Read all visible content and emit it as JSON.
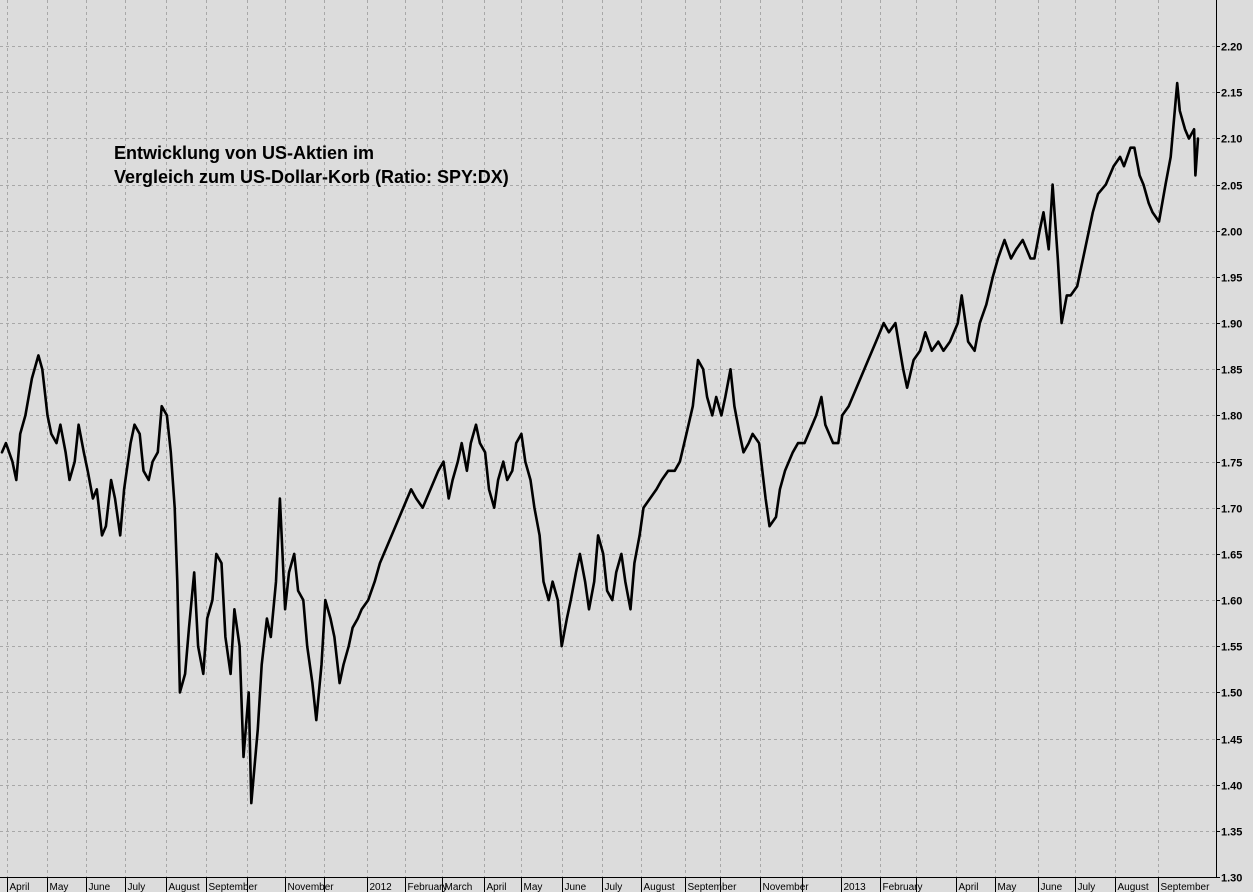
{
  "chart_data": {
    "type": "line",
    "title_lines": [
      "Entwicklung von US-Aktien im",
      "Vergleich zum US-Dollar-Korb (Ratio: SPY:DX)"
    ],
    "xlabel": "",
    "ylabel": "",
    "ylim": [
      1.3,
      2.25
    ],
    "y_ticks": [
      1.3,
      1.35,
      1.4,
      1.45,
      1.5,
      1.55,
      1.6,
      1.65,
      1.7,
      1.75,
      1.8,
      1.85,
      1.9,
      1.95,
      2.0,
      2.05,
      2.1,
      2.15,
      2.2
    ],
    "y_tick_labels": [
      "1.30",
      "1.35",
      "1.40",
      "1.45",
      "1.50",
      "1.55",
      "1.60",
      "1.65",
      "1.70",
      "1.75",
      "1.80",
      "1.85",
      "1.90",
      "1.95",
      "2.00",
      "2.05",
      "2.10",
      "2.15",
      "2.20"
    ],
    "y_axis_side": "right",
    "x_range": [
      "2011-03-28",
      "2013-10-04"
    ],
    "x_ticks": [
      {
        "date": "2011-04-01",
        "label": "April"
      },
      {
        "date": "2011-05-02",
        "label": "May"
      },
      {
        "date": "2011-06-01",
        "label": "June"
      },
      {
        "date": "2011-07-01",
        "label": "July"
      },
      {
        "date": "2011-08-01",
        "label": "August"
      },
      {
        "date": "2011-09-01",
        "label": "September"
      },
      {
        "date": "2011-10-03",
        "label": ""
      },
      {
        "date": "2011-11-01",
        "label": "November"
      },
      {
        "date": "2011-12-01",
        "label": ""
      },
      {
        "date": "2012-01-03",
        "label": "2012"
      },
      {
        "date": "2012-02-01",
        "label": "February"
      },
      {
        "date": "2012-03-01",
        "label": "March"
      },
      {
        "date": "2012-04-02",
        "label": "April"
      },
      {
        "date": "2012-05-01",
        "label": "May"
      },
      {
        "date": "2012-06-01",
        "label": "June"
      },
      {
        "date": "2012-07-02",
        "label": "July"
      },
      {
        "date": "2012-08-01",
        "label": "August"
      },
      {
        "date": "2012-09-04",
        "label": "September"
      },
      {
        "date": "2012-10-01",
        "label": ""
      },
      {
        "date": "2012-11-01",
        "label": "November"
      },
      {
        "date": "2012-12-03",
        "label": ""
      },
      {
        "date": "2013-01-02",
        "label": "2013"
      },
      {
        "date": "2013-02-01",
        "label": "February"
      },
      {
        "date": "2013-03-01",
        "label": ""
      },
      {
        "date": "2013-04-01",
        "label": "April"
      },
      {
        "date": "2013-05-01",
        "label": "May"
      },
      {
        "date": "2013-06-03",
        "label": "June"
      },
      {
        "date": "2013-07-01",
        "label": "July"
      },
      {
        "date": "2013-08-01",
        "label": "August"
      },
      {
        "date": "2013-09-03",
        "label": "September"
      }
    ],
    "grid": true,
    "colors": {
      "background": "#dcdcdc",
      "line": "#000000",
      "grid": "#a8a8a8"
    },
    "series": [
      {
        "values": [
          [
            "2011-03-28",
            1.76
          ],
          [
            "2011-03-31",
            1.77
          ],
          [
            "2011-04-05",
            1.75
          ],
          [
            "2011-04-08",
            1.73
          ],
          [
            "2011-04-11",
            1.78
          ],
          [
            "2011-04-15",
            1.8
          ],
          [
            "2011-04-20",
            1.84
          ],
          [
            "2011-04-25",
            1.865
          ],
          [
            "2011-04-28",
            1.85
          ],
          [
            "2011-05-02",
            1.8
          ],
          [
            "2011-05-05",
            1.78
          ],
          [
            "2011-05-09",
            1.77
          ],
          [
            "2011-05-12",
            1.79
          ],
          [
            "2011-05-16",
            1.76
          ],
          [
            "2011-05-19",
            1.73
          ],
          [
            "2011-05-23",
            1.75
          ],
          [
            "2011-05-26",
            1.79
          ],
          [
            "2011-05-30",
            1.76
          ],
          [
            "2011-06-02",
            1.74
          ],
          [
            "2011-06-06",
            1.71
          ],
          [
            "2011-06-09",
            1.72
          ],
          [
            "2011-06-13",
            1.67
          ],
          [
            "2011-06-16",
            1.68
          ],
          [
            "2011-06-20",
            1.73
          ],
          [
            "2011-06-23",
            1.71
          ],
          [
            "2011-06-27",
            1.67
          ],
          [
            "2011-06-30",
            1.72
          ],
          [
            "2011-07-05",
            1.77
          ],
          [
            "2011-07-08",
            1.79
          ],
          [
            "2011-07-12",
            1.78
          ],
          [
            "2011-07-15",
            1.74
          ],
          [
            "2011-07-19",
            1.73
          ],
          [
            "2011-07-22",
            1.75
          ],
          [
            "2011-07-26",
            1.76
          ],
          [
            "2011-07-29",
            1.81
          ],
          [
            "2011-08-02",
            1.8
          ],
          [
            "2011-08-05",
            1.76
          ],
          [
            "2011-08-08",
            1.7
          ],
          [
            "2011-08-10",
            1.62
          ],
          [
            "2011-08-12",
            1.5
          ],
          [
            "2011-08-16",
            1.52
          ],
          [
            "2011-08-19",
            1.57
          ],
          [
            "2011-08-23",
            1.63
          ],
          [
            "2011-08-26",
            1.55
          ],
          [
            "2011-08-30",
            1.52
          ],
          [
            "2011-09-02",
            1.58
          ],
          [
            "2011-09-06",
            1.6
          ],
          [
            "2011-09-09",
            1.65
          ],
          [
            "2011-09-13",
            1.64
          ],
          [
            "2011-09-16",
            1.56
          ],
          [
            "2011-09-20",
            1.52
          ],
          [
            "2011-09-23",
            1.59
          ],
          [
            "2011-09-27",
            1.55
          ],
          [
            "2011-09-30",
            1.43
          ],
          [
            "2011-10-04",
            1.5
          ],
          [
            "2011-10-06",
            1.38
          ],
          [
            "2011-10-11",
            1.46
          ],
          [
            "2011-10-14",
            1.53
          ],
          [
            "2011-10-18",
            1.58
          ],
          [
            "2011-10-21",
            1.56
          ],
          [
            "2011-10-25",
            1.62
          ],
          [
            "2011-10-28",
            1.71
          ],
          [
            "2011-11-01",
            1.59
          ],
          [
            "2011-11-04",
            1.63
          ],
          [
            "2011-11-08",
            1.65
          ],
          [
            "2011-11-11",
            1.61
          ],
          [
            "2011-11-15",
            1.6
          ],
          [
            "2011-11-18",
            1.55
          ],
          [
            "2011-11-22",
            1.51
          ],
          [
            "2011-11-25",
            1.47
          ],
          [
            "2011-11-29",
            1.53
          ],
          [
            "2011-12-02",
            1.6
          ],
          [
            "2011-12-06",
            1.58
          ],
          [
            "2011-12-09",
            1.56
          ],
          [
            "2011-12-13",
            1.51
          ],
          [
            "2011-12-16",
            1.53
          ],
          [
            "2011-12-20",
            1.55
          ],
          [
            "2011-12-23",
            1.57
          ],
          [
            "2011-12-27",
            1.58
          ],
          [
            "2011-12-30",
            1.59
          ],
          [
            "2012-01-04",
            1.6
          ],
          [
            "2012-01-09",
            1.62
          ],
          [
            "2012-01-13",
            1.64
          ],
          [
            "2012-01-19",
            1.66
          ],
          [
            "2012-01-25",
            1.68
          ],
          [
            "2012-01-31",
            1.7
          ],
          [
            "2012-02-06",
            1.72
          ],
          [
            "2012-02-10",
            1.71
          ],
          [
            "2012-02-15",
            1.7
          ],
          [
            "2012-02-21",
            1.72
          ],
          [
            "2012-02-27",
            1.74
          ],
          [
            "2012-03-02",
            1.75
          ],
          [
            "2012-03-06",
            1.71
          ],
          [
            "2012-03-09",
            1.73
          ],
          [
            "2012-03-13",
            1.75
          ],
          [
            "2012-03-16",
            1.77
          ],
          [
            "2012-03-20",
            1.74
          ],
          [
            "2012-03-23",
            1.77
          ],
          [
            "2012-03-27",
            1.79
          ],
          [
            "2012-03-30",
            1.77
          ],
          [
            "2012-04-03",
            1.76
          ],
          [
            "2012-04-06",
            1.72
          ],
          [
            "2012-04-10",
            1.7
          ],
          [
            "2012-04-13",
            1.73
          ],
          [
            "2012-04-17",
            1.75
          ],
          [
            "2012-04-20",
            1.73
          ],
          [
            "2012-04-24",
            1.74
          ],
          [
            "2012-04-27",
            1.77
          ],
          [
            "2012-05-01",
            1.78
          ],
          [
            "2012-05-04",
            1.75
          ],
          [
            "2012-05-08",
            1.73
          ],
          [
            "2012-05-11",
            1.7
          ],
          [
            "2012-05-15",
            1.67
          ],
          [
            "2012-05-18",
            1.62
          ],
          [
            "2012-05-22",
            1.6
          ],
          [
            "2012-05-25",
            1.62
          ],
          [
            "2012-05-29",
            1.6
          ],
          [
            "2012-06-01",
            1.55
          ],
          [
            "2012-06-05",
            1.58
          ],
          [
            "2012-06-08",
            1.6
          ],
          [
            "2012-06-12",
            1.63
          ],
          [
            "2012-06-15",
            1.65
          ],
          [
            "2012-06-19",
            1.62
          ],
          [
            "2012-06-22",
            1.59
          ],
          [
            "2012-06-26",
            1.62
          ],
          [
            "2012-06-29",
            1.67
          ],
          [
            "2012-07-03",
            1.65
          ],
          [
            "2012-07-06",
            1.61
          ],
          [
            "2012-07-10",
            1.6
          ],
          [
            "2012-07-13",
            1.63
          ],
          [
            "2012-07-17",
            1.65
          ],
          [
            "2012-07-20",
            1.62
          ],
          [
            "2012-07-24",
            1.59
          ],
          [
            "2012-07-27",
            1.64
          ],
          [
            "2012-07-31",
            1.67
          ],
          [
            "2012-08-03",
            1.7
          ],
          [
            "2012-08-08",
            1.71
          ],
          [
            "2012-08-13",
            1.72
          ],
          [
            "2012-08-17",
            1.73
          ],
          [
            "2012-08-22",
            1.74
          ],
          [
            "2012-08-27",
            1.74
          ],
          [
            "2012-08-31",
            1.75
          ],
          [
            "2012-09-05",
            1.78
          ],
          [
            "2012-09-10",
            1.81
          ],
          [
            "2012-09-14",
            1.86
          ],
          [
            "2012-09-18",
            1.85
          ],
          [
            "2012-09-21",
            1.82
          ],
          [
            "2012-09-25",
            1.8
          ],
          [
            "2012-09-28",
            1.82
          ],
          [
            "2012-10-02",
            1.8
          ],
          [
            "2012-10-05",
            1.82
          ],
          [
            "2012-10-09",
            1.85
          ],
          [
            "2012-10-12",
            1.81
          ],
          [
            "2012-10-16",
            1.78
          ],
          [
            "2012-10-19",
            1.76
          ],
          [
            "2012-10-23",
            1.77
          ],
          [
            "2012-10-26",
            1.78
          ],
          [
            "2012-10-31",
            1.77
          ],
          [
            "2012-11-05",
            1.71
          ],
          [
            "2012-11-08",
            1.68
          ],
          [
            "2012-11-13",
            1.69
          ],
          [
            "2012-11-16",
            1.72
          ],
          [
            "2012-11-20",
            1.74
          ],
          [
            "2012-11-26",
            1.76
          ],
          [
            "2012-11-30",
            1.77
          ],
          [
            "2012-12-05",
            1.77
          ],
          [
            "2012-12-11",
            1.79
          ],
          [
            "2012-12-14",
            1.8
          ],
          [
            "2012-12-18",
            1.82
          ],
          [
            "2012-12-21",
            1.79
          ],
          [
            "2012-12-27",
            1.77
          ],
          [
            "2012-12-31",
            1.77
          ],
          [
            "2013-01-03",
            1.8
          ],
          [
            "2013-01-08",
            1.81
          ],
          [
            "2013-01-11",
            1.82
          ],
          [
            "2013-01-17",
            1.84
          ],
          [
            "2013-01-23",
            1.86
          ],
          [
            "2013-01-29",
            1.88
          ],
          [
            "2013-02-04",
            1.9
          ],
          [
            "2013-02-08",
            1.89
          ],
          [
            "2013-02-13",
            1.9
          ],
          [
            "2013-02-19",
            1.85
          ],
          [
            "2013-02-22",
            1.83
          ],
          [
            "2013-02-27",
            1.86
          ],
          [
            "2013-03-04",
            1.87
          ],
          [
            "2013-03-08",
            1.89
          ],
          [
            "2013-03-13",
            1.87
          ],
          [
            "2013-03-18",
            1.88
          ],
          [
            "2013-03-22",
            1.87
          ],
          [
            "2013-03-27",
            1.88
          ],
          [
            "2013-04-02",
            1.9
          ],
          [
            "2013-04-05",
            1.93
          ],
          [
            "2013-04-10",
            1.88
          ],
          [
            "2013-04-15",
            1.87
          ],
          [
            "2013-04-19",
            1.9
          ],
          [
            "2013-04-24",
            1.92
          ],
          [
            "2013-04-29",
            1.95
          ],
          [
            "2013-05-03",
            1.97
          ],
          [
            "2013-05-08",
            1.99
          ],
          [
            "2013-05-13",
            1.97
          ],
          [
            "2013-05-17",
            1.98
          ],
          [
            "2013-05-22",
            1.99
          ],
          [
            "2013-05-28",
            1.97
          ],
          [
            "2013-05-31",
            1.97
          ],
          [
            "2013-06-04",
            2.0
          ],
          [
            "2013-06-07",
            2.02
          ],
          [
            "2013-06-11",
            1.98
          ],
          [
            "2013-06-14",
            2.05
          ],
          [
            "2013-06-18",
            1.97
          ],
          [
            "2013-06-21",
            1.9
          ],
          [
            "2013-06-25",
            1.93
          ],
          [
            "2013-06-28",
            1.93
          ],
          [
            "2013-07-03",
            1.94
          ],
          [
            "2013-07-09",
            1.98
          ],
          [
            "2013-07-15",
            2.02
          ],
          [
            "2013-07-19",
            2.04
          ],
          [
            "2013-07-25",
            2.05
          ],
          [
            "2013-07-31",
            2.07
          ],
          [
            "2013-08-05",
            2.08
          ],
          [
            "2013-08-08",
            2.07
          ],
          [
            "2013-08-13",
            2.09
          ],
          [
            "2013-08-16",
            2.09
          ],
          [
            "2013-08-20",
            2.06
          ],
          [
            "2013-08-23",
            2.05
          ],
          [
            "2013-08-27",
            2.03
          ],
          [
            "2013-08-30",
            2.02
          ],
          [
            "2013-09-04",
            2.01
          ],
          [
            "2013-09-09",
            2.05
          ],
          [
            "2013-09-13",
            2.08
          ],
          [
            "2013-09-18",
            2.16
          ],
          [
            "2013-09-20",
            2.13
          ],
          [
            "2013-09-24",
            2.11
          ],
          [
            "2013-09-27",
            2.1
          ],
          [
            "2013-10-01",
            2.11
          ],
          [
            "2013-10-02",
            2.06
          ],
          [
            "2013-10-04",
            2.1
          ]
        ]
      }
    ]
  }
}
